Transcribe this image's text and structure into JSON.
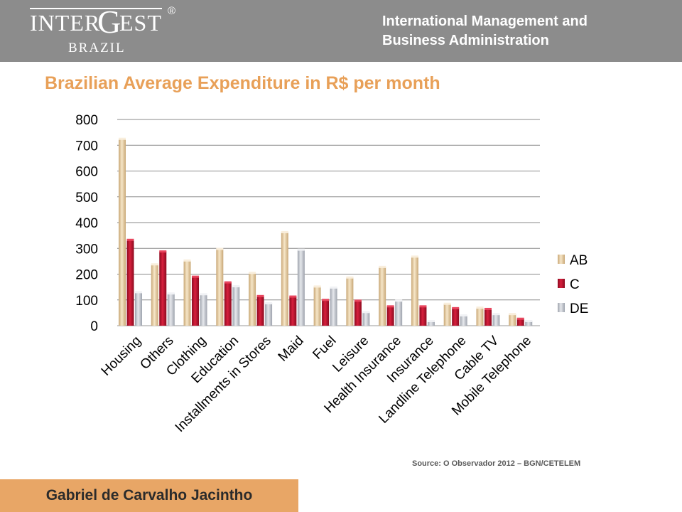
{
  "header": {
    "logo_inter": "INTER",
    "logo_g": "G",
    "logo_est": "EST",
    "logo_reg": "®",
    "logo_country": "BRAZIL",
    "line1": "International Management and",
    "line2": "Business Administration"
  },
  "slide_title": "Brazilian Average Expenditure in R$ per month",
  "source": "Source: O Observador 2012 – BGN/CETELEM",
  "footer": {
    "name": "Gabriel de Carvalho Jacintho"
  },
  "colors": {
    "header_bg": "#8c8c8c",
    "title": "#e8a058",
    "footer_bg": "#e8a666",
    "AB": "#e8cfa6",
    "C": "#c8102e",
    "DE": "#c4c8d0"
  },
  "chart_data": {
    "type": "bar",
    "title": "",
    "xlabel": "",
    "ylabel": "",
    "ylim": [
      0,
      800
    ],
    "yticks": [
      "0",
      "100",
      "200",
      "300",
      "400",
      "500",
      "600",
      "700",
      "800"
    ],
    "grid": true,
    "legend_position": "right",
    "categories": [
      "Housing",
      "Others",
      "Clothing",
      "Education",
      "Installments in Stores",
      "Maid",
      "Fuel",
      "Leisure",
      "Health Insurance",
      "Insurance",
      "Landline Telephone",
      "Cable TV",
      "Mobile Telephone"
    ],
    "series": [
      {
        "name": "AB",
        "values": [
          725,
          238,
          253,
          298,
          205,
          363,
          152,
          187,
          228,
          268,
          85,
          70,
          45
        ]
      },
      {
        "name": "C",
        "values": [
          333,
          288,
          190,
          168,
          115,
          113,
          100,
          97,
          75,
          75,
          68,
          65,
          27
        ]
      },
      {
        "name": "DE",
        "values": [
          130,
          125,
          122,
          153,
          87,
          295,
          148,
          53,
          97,
          18,
          40,
          45,
          18
        ]
      }
    ]
  }
}
